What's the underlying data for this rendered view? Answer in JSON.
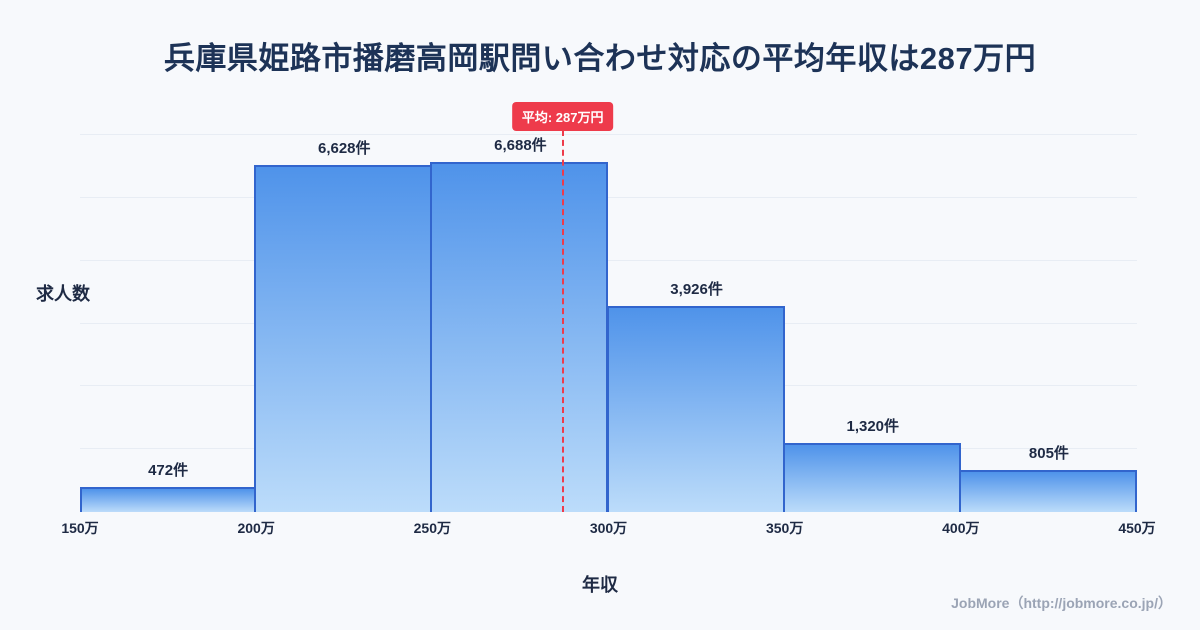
{
  "title": "兵庫県姫路市播磨高岡駅問い合わせ対応の平均年収は287万円",
  "chart_data": {
    "type": "bar",
    "title": "兵庫県姫路市播磨高岡駅問い合わせ対応の平均年収は287万円",
    "xlabel": "年収",
    "ylabel": "求人数",
    "x_range": [
      150,
      450
    ],
    "ylim": [
      0,
      7200
    ],
    "grid": true,
    "grid_step": 1200,
    "x_ticks": [
      "150万",
      "200万",
      "250万",
      "300万",
      "350万",
      "400万",
      "450万"
    ],
    "bins": [
      [
        150,
        200
      ],
      [
        200,
        250
      ],
      [
        250,
        300
      ],
      [
        300,
        350
      ],
      [
        350,
        400
      ],
      [
        400,
        450
      ]
    ],
    "values": [
      472,
      6628,
      6688,
      3926,
      1320,
      805
    ],
    "value_labels": [
      "472件",
      "6,628件",
      "6,688件",
      "3,926件",
      "1,320件",
      "805件"
    ],
    "average": {
      "value": 287,
      "label": "平均: 287万円"
    },
    "legend_position": "none",
    "colors": {
      "bar_top": "#4f93ea",
      "bar_bottom": "#bcdcfa",
      "bar_border": "#3265cd",
      "average_line": "#ee3b4b",
      "title_text": "#1d3357",
      "background": "#f7f9fc"
    }
  },
  "footer": {
    "credit": "JobMore（http://jobmore.co.jp/）"
  }
}
